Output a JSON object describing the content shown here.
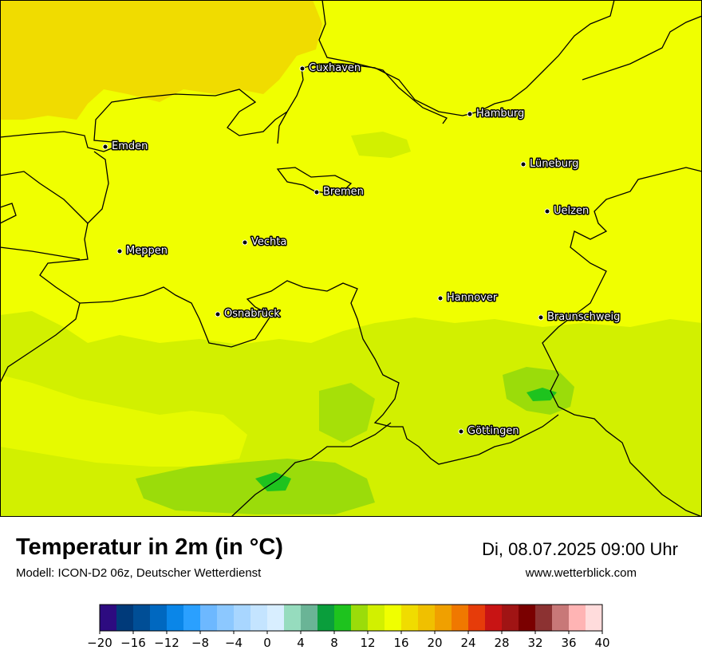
{
  "title": "Temperatur in 2m (in °C)",
  "model_info": "Modell: ICON-D2 06z, Deutscher Wetterdienst",
  "datetime": "Di, 08.07.2025 09:00 Uhr",
  "website": "www.wetterblick.com",
  "cities": [
    {
      "name": "Cuxhaven"
    },
    {
      "name": "Hamburg"
    },
    {
      "name": "Emden"
    },
    {
      "name": "Lüneburg"
    },
    {
      "name": "Bremen"
    },
    {
      "name": "Uelzen"
    },
    {
      "name": "Vechta"
    },
    {
      "name": "Meppen"
    },
    {
      "name": "Hannover"
    },
    {
      "name": "Osnabrück"
    },
    {
      "name": "Braunschweig"
    },
    {
      "name": "Göttingen"
    }
  ],
  "colorbar": {
    "colors": [
      "#2d0b80",
      "#003a7a",
      "#004e96",
      "#0068c0",
      "#0a86e8",
      "#2aa0ff",
      "#6db8ff",
      "#8cc8ff",
      "#a8d6ff",
      "#c4e4ff",
      "#d8eeff",
      "#96dcbe",
      "#6ab496",
      "#0a9e3c",
      "#1ec31e",
      "#9bdc0a",
      "#d2f000",
      "#f0ff00",
      "#f0dc00",
      "#f0c000",
      "#f0a000",
      "#f07800",
      "#e63c0a",
      "#c81414",
      "#a01414",
      "#7a0000",
      "#8c3232",
      "#c87878",
      "#ffb4b4",
      "#ffdcdc"
    ],
    "ticks": [
      "−20",
      "−16",
      "−12",
      "−8",
      "−4",
      "0",
      "4",
      "8",
      "12",
      "16",
      "20",
      "24",
      "28",
      "32",
      "36",
      "40"
    ]
  },
  "colors": {
    "temp_16_18": "#f0ff00",
    "temp_18_20": "#f0dc00",
    "temp_14_16": "#d2f000",
    "temp_12_14": "#9bdc0a",
    "temp_10_12": "#1ec31e",
    "border": "#000000"
  }
}
